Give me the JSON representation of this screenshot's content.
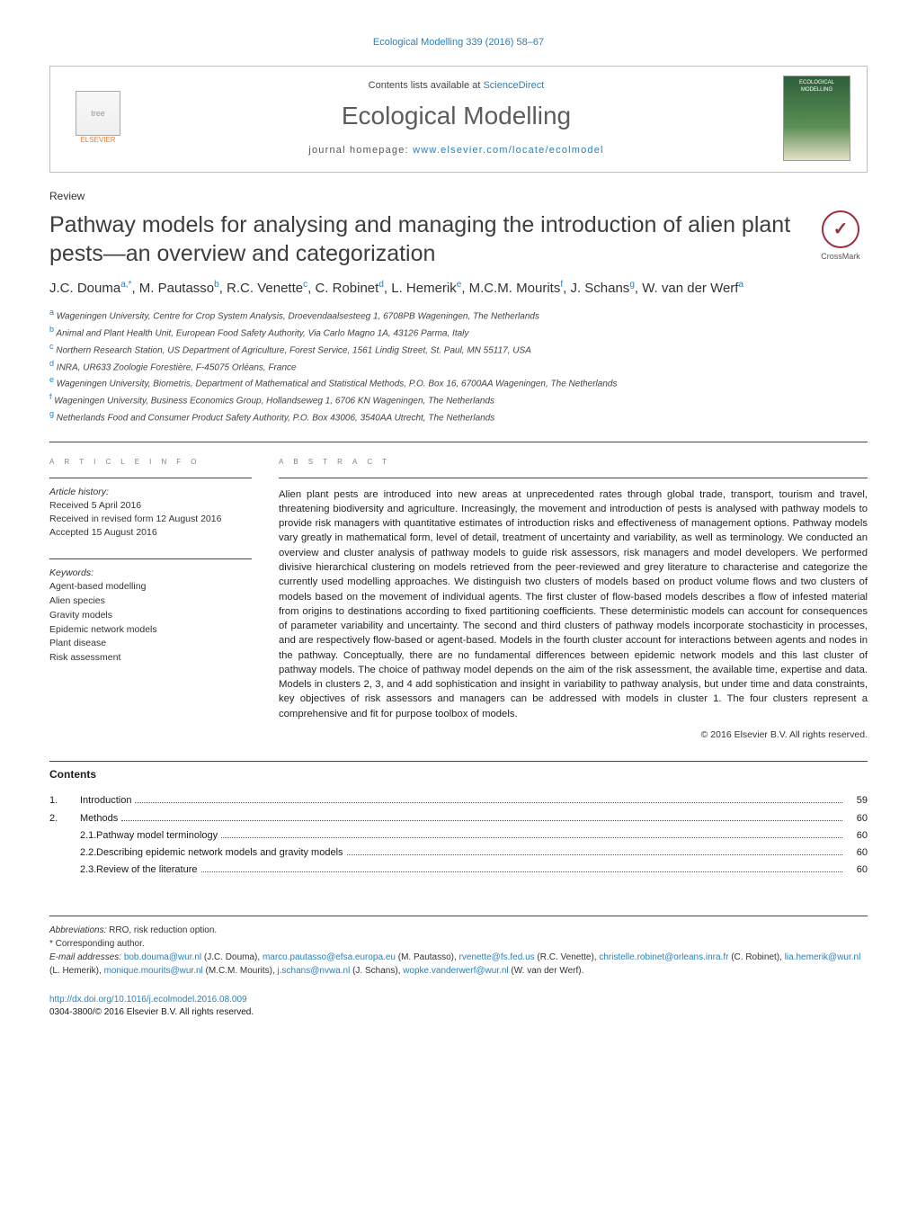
{
  "running_head": "Ecological Modelling 339 (2016) 58–67",
  "header": {
    "publisher_label": "ELSEVIER",
    "contents_prefix": "Contents lists available at ",
    "contents_link": "ScienceDirect",
    "journal": "Ecological Modelling",
    "homepage_prefix": "journal homepage: ",
    "homepage_link": "www.elsevier.com/locate/ecolmodel",
    "cover_caption": "ECOLOGICAL MODELLING"
  },
  "article_type": "Review",
  "title": "Pathway models for analysing and managing the introduction of alien plant pests—an overview and categorization",
  "crossmark_label": "CrossMark",
  "authors_html": "J.C. Douma<sup>a,*</sup>, M. Pautasso<sup>b</sup>, R.C. Venette<sup>c</sup>, C. Robinet<sup>d</sup>, L. Hemerik<sup>e</sup>, M.C.M. Mourits<sup>f</sup>, J. Schans<sup>g</sup>, W. van der Werf<sup>a</sup>",
  "affiliations": [
    {
      "sup": "a",
      "text": "Wageningen University, Centre for Crop System Analysis, Droevendaalsesteeg 1, 6708PB Wageningen, The Netherlands"
    },
    {
      "sup": "b",
      "text": "Animal and Plant Health Unit, European Food Safety Authority, Via Carlo Magno 1A, 43126 Parma, Italy"
    },
    {
      "sup": "c",
      "text": "Northern Research Station, US Department of Agriculture, Forest Service, 1561 Lindig Street, St. Paul, MN 55117, USA"
    },
    {
      "sup": "d",
      "text": "INRA, UR633 Zoologie Forestière, F-45075 Orléans, France"
    },
    {
      "sup": "e",
      "text": "Wageningen University, Biometris, Department of Mathematical and Statistical Methods, P.O. Box 16, 6700AA Wageningen, The Netherlands"
    },
    {
      "sup": "f",
      "text": "Wageningen University, Business Economics Group, Hollandseweg 1, 6706 KN Wageningen, The Netherlands"
    },
    {
      "sup": "g",
      "text": "Netherlands Food and Consumer Product Safety Authority, P.O. Box 43006, 3540AA Utrecht, The Netherlands"
    }
  ],
  "info_head": "a r t i c l e   i n f o",
  "abstract_head": "a b s t r a c t",
  "history": {
    "label": "Article history:",
    "received": "Received 5 April 2016",
    "revised": "Received in revised form 12 August 2016",
    "accepted": "Accepted 15 August 2016"
  },
  "keywords": {
    "label": "Keywords:",
    "items": [
      "Agent-based modelling",
      "Alien species",
      "Gravity models",
      "Epidemic network models",
      "Plant disease",
      "Risk assessment"
    ]
  },
  "abstract": "Alien plant pests are introduced into new areas at unprecedented rates through global trade, transport, tourism and travel, threatening biodiversity and agriculture. Increasingly, the movement and introduction of pests is analysed with pathway models to provide risk managers with quantitative estimates of introduction risks and effectiveness of management options. Pathway models vary greatly in mathematical form, level of detail, treatment of uncertainty and variability, as well as terminology. We conducted an overview and cluster analysis of pathway models to guide risk assessors, risk managers and model developers. We performed divisive hierarchical clustering on models retrieved from the peer-reviewed and grey literature to characterise and categorize the currently used modelling approaches. We distinguish two clusters of models based on product volume flows and two clusters of models based on the movement of individual agents. The first cluster of flow-based models describes a flow of infested material from origins to destinations according to fixed partitioning coefficients. These deterministic models can account for consequences of parameter variability and uncertainty. The second and third clusters of pathway models incorporate stochasticity in processes, and are respectively flow-based or agent-based. Models in the fourth cluster account for interactions between agents and nodes in the pathway. Conceptually, there are no fundamental differences between epidemic network models and this last cluster of pathway models. The choice of pathway model depends on the aim of the risk assessment, the available time, expertise and data. Models in clusters 2, 3, and 4 add sophistication and insight in variability to pathway analysis, but under time and data constraints, key objectives of risk assessors and managers can be addressed with models in cluster 1. The four clusters represent a comprehensive and fit for purpose toolbox of models.",
  "copyright": "© 2016 Elsevier B.V. All rights reserved.",
  "contents_head": "Contents",
  "toc": [
    {
      "num": "1.",
      "label": "Introduction",
      "page": "59",
      "indent": 0
    },
    {
      "num": "2.",
      "label": "Methods",
      "page": "60",
      "indent": 0
    },
    {
      "num": "2.1.",
      "label": "Pathway model terminology",
      "page": "60",
      "indent": 1
    },
    {
      "num": "2.2.",
      "label": "Describing epidemic network models and gravity models",
      "page": "60",
      "indent": 1
    },
    {
      "num": "2.3.",
      "label": "Review of the literature",
      "page": "60",
      "indent": 1
    }
  ],
  "footnotes": {
    "abbrev_label": "Abbreviations:",
    "abbrev_text": " RRO, risk reduction option.",
    "corr": "* Corresponding author.",
    "email_label": "E-mail addresses: ",
    "emails": [
      {
        "addr": "bob.douma@wur.nl",
        "who": "(J.C. Douma)"
      },
      {
        "addr": "marco.pautasso@efsa.europa.eu",
        "who": "(M. Pautasso)"
      },
      {
        "addr": "rvenette@fs.fed.us",
        "who": "(R.C. Venette)"
      },
      {
        "addr": "christelle.robinet@orleans.inra.fr",
        "who": "(C. Robinet)"
      },
      {
        "addr": "lia.hemerik@wur.nl",
        "who": "(L. Hemerik)"
      },
      {
        "addr": "monique.mourits@wur.nl",
        "who": "(M.C.M. Mourits)"
      },
      {
        "addr": "j.schans@nvwa.nl",
        "who": "(J. Schans)"
      },
      {
        "addr": "wopke.vanderwerf@wur.nl",
        "who": "(W. van der Werf)"
      }
    ]
  },
  "doi": {
    "link": "http://dx.doi.org/10.1016/j.ecolmodel.2016.08.009",
    "issn_line": "0304-3800/© 2016 Elsevier B.V. All rights reserved."
  },
  "colors": {
    "link": "#2a7fb8",
    "text": "#1a1a1a",
    "grey_caps": "#808080",
    "rule": "#444444",
    "elsevier_orange": "#f47d30"
  }
}
